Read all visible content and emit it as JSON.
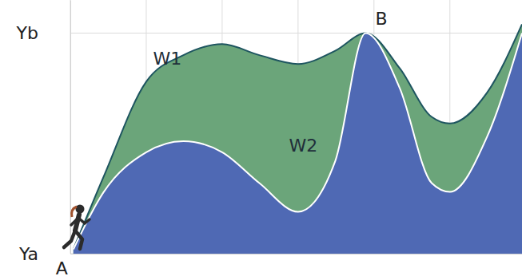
{
  "chart_data": {
    "type": "area",
    "x": [
      0.04,
      0.44,
      1.0,
      1.49,
      2.0,
      2.49,
      3.0,
      3.49,
      3.89,
      4.34,
      4.76,
      5.0,
      5.49,
      5.95
    ],
    "series": [
      {
        "name": "W1",
        "color": "#6ba57a",
        "values": [
          0.02,
          0.35,
          0.78,
          0.9,
          0.95,
          0.9,
          0.86,
          0.92,
          1.0,
          0.84,
          0.62,
          0.59,
          0.73,
          1.04
        ]
      },
      {
        "name": "W2",
        "color": "#4f69b4",
        "values": [
          0.02,
          0.28,
          0.46,
          0.51,
          0.46,
          0.32,
          0.19,
          0.42,
          1.0,
          0.75,
          0.32,
          0.28,
          0.53,
          1.0
        ]
      }
    ],
    "annotations": [
      {
        "text": "A",
        "x": 0.04,
        "y": 0.02
      },
      {
        "text": "B",
        "x": 3.89,
        "y": 1.0
      }
    ],
    "xlim": [
      0,
      5.95
    ],
    "xticks": [
      0,
      1,
      2,
      3,
      4,
      5
    ],
    "ylim": [
      0,
      1.15
    ],
    "yticks": [
      {
        "value": 0,
        "label": "Ya"
      },
      {
        "value": 1,
        "label": "Yb"
      }
    ],
    "grid": true,
    "tick_labels": "y"
  }
}
